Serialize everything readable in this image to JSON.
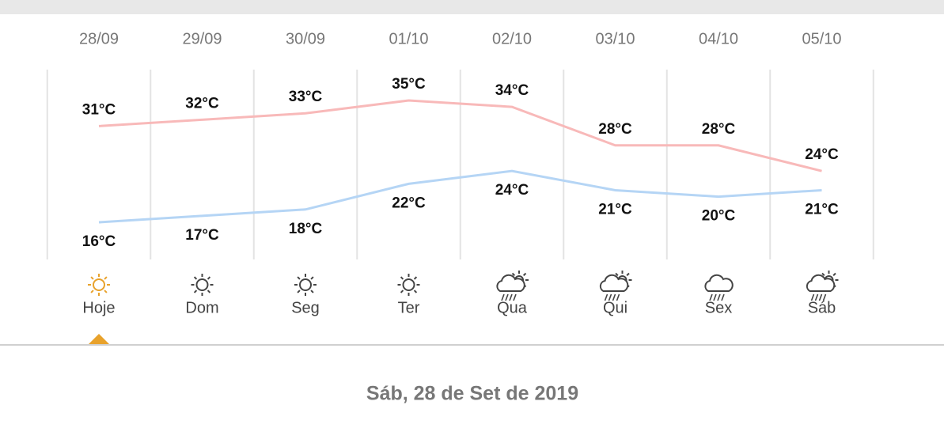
{
  "chart_data": {
    "type": "line",
    "categories": [
      "28/09",
      "29/09",
      "30/09",
      "01/10",
      "02/10",
      "03/10",
      "04/10",
      "05/10"
    ],
    "series": [
      {
        "color": "#f8b9b9",
        "values": [
          31,
          32,
          33,
          35,
          34,
          28,
          28,
          24
        ],
        "value_labels": [
          "31°C",
          "32°C",
          "33°C",
          "35°C",
          "34°C",
          "28°C",
          "28°C",
          "24°C"
        ]
      },
      {
        "color": "#b5d5f5",
        "values": [
          16,
          17,
          18,
          22,
          24,
          21,
          20,
          21
        ],
        "value_labels": [
          "16°C",
          "17°C",
          "18°C",
          "22°C",
          "24°C",
          "21°C",
          "20°C",
          "21°C"
        ]
      }
    ]
  },
  "days": [
    "Hoje",
    "Dom",
    "Seg",
    "Ter",
    "Qua",
    "Qui",
    "Sex",
    "Sáb"
  ],
  "selected_date": "Sáb, 28 de Set de 2019"
}
